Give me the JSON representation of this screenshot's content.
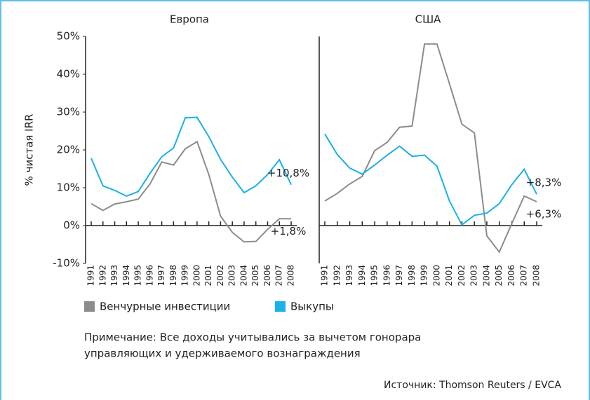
{
  "chart_data": [
    {
      "type": "line",
      "title": "Европа",
      "y_label": "% чистая IRR",
      "categories": [
        "1991",
        "1992",
        "1993",
        "1994",
        "1995",
        "1996",
        "1997",
        "1998",
        "1999",
        "2000",
        "2001",
        "2002",
        "2003",
        "2004",
        "2005",
        "2006",
        "2007",
        "2008"
      ],
      "ylim": [
        -10,
        50
      ],
      "yticks": [
        {
          "value": -10,
          "label": "-10%"
        },
        {
          "value": 0,
          "label": "0%"
        },
        {
          "value": 10,
          "label": "10%"
        },
        {
          "value": 20,
          "label": "20%"
        },
        {
          "value": 30,
          "label": "30%"
        },
        {
          "value": 40,
          "label": "40%"
        },
        {
          "value": 50,
          "label": "50%"
        }
      ],
      "series": [
        {
          "name": "Венчурные инвестиции",
          "color": "#8c8c8c",
          "values": [
            5.8,
            4.0,
            5.7,
            6.3,
            7.0,
            11.0,
            16.8,
            16.0,
            20.3,
            22.2,
            13.5,
            2.5,
            -1.8,
            -4.3,
            -4.2,
            -1.0,
            1.8,
            1.8
          ],
          "value_labels": [
            null,
            null,
            null,
            null,
            null,
            null,
            null,
            null,
            null,
            null,
            null,
            null,
            null,
            null,
            null,
            null,
            null,
            "+1,8%"
          ]
        },
        {
          "name": "Выкупы",
          "color": "#1ab0e8",
          "values": [
            17.8,
            10.5,
            9.3,
            7.8,
            9.0,
            13.8,
            18.2,
            20.5,
            28.5,
            28.6,
            23.5,
            17.5,
            12.8,
            8.7,
            10.5,
            13.5,
            17.4,
            10.8
          ],
          "value_labels": [
            null,
            null,
            null,
            null,
            null,
            null,
            null,
            null,
            null,
            null,
            null,
            null,
            null,
            null,
            null,
            null,
            null,
            "+10,8%"
          ]
        }
      ]
    },
    {
      "type": "line",
      "title": "США",
      "categories": [
        "1991",
        "1992",
        "1993",
        "1994",
        "1995",
        "1996",
        "1997",
        "1998",
        "1999",
        "2000",
        "2001",
        "2002",
        "2003",
        "2004",
        "2005",
        "2006",
        "2007",
        "2008"
      ],
      "ylim": [
        -10,
        50
      ],
      "series": [
        {
          "name": "Венчурные инвестиции",
          "color": "#8c8c8c",
          "values": [
            6.5,
            8.5,
            11.0,
            13.0,
            19.8,
            22.0,
            26.0,
            26.3,
            48.0,
            48.0,
            37.5,
            26.8,
            24.5,
            -2.7,
            -7.0,
            0.5,
            7.8,
            6.3
          ],
          "value_labels": [
            null,
            null,
            null,
            null,
            null,
            null,
            null,
            null,
            null,
            null,
            null,
            null,
            null,
            null,
            null,
            null,
            null,
            "+6,3%"
          ]
        },
        {
          "name": "Выкупы",
          "color": "#1ab0e8",
          "values": [
            24.2,
            18.8,
            15.2,
            13.6,
            16.0,
            18.6,
            21.0,
            18.3,
            18.6,
            15.7,
            6.5,
            0.2,
            2.7,
            3.3,
            5.8,
            10.8,
            14.9,
            8.3
          ],
          "value_labels": [
            null,
            null,
            null,
            null,
            null,
            null,
            null,
            null,
            null,
            null,
            null,
            null,
            null,
            null,
            null,
            null,
            null,
            "+8,3%"
          ]
        }
      ]
    }
  ],
  "note": [
    "Примечание: Все доходы учитывались за вычетом гонорара",
    "управляющих и удерживаемого вознаграждения"
  ],
  "source": "Источник: Thomson Reuters / EVCA"
}
